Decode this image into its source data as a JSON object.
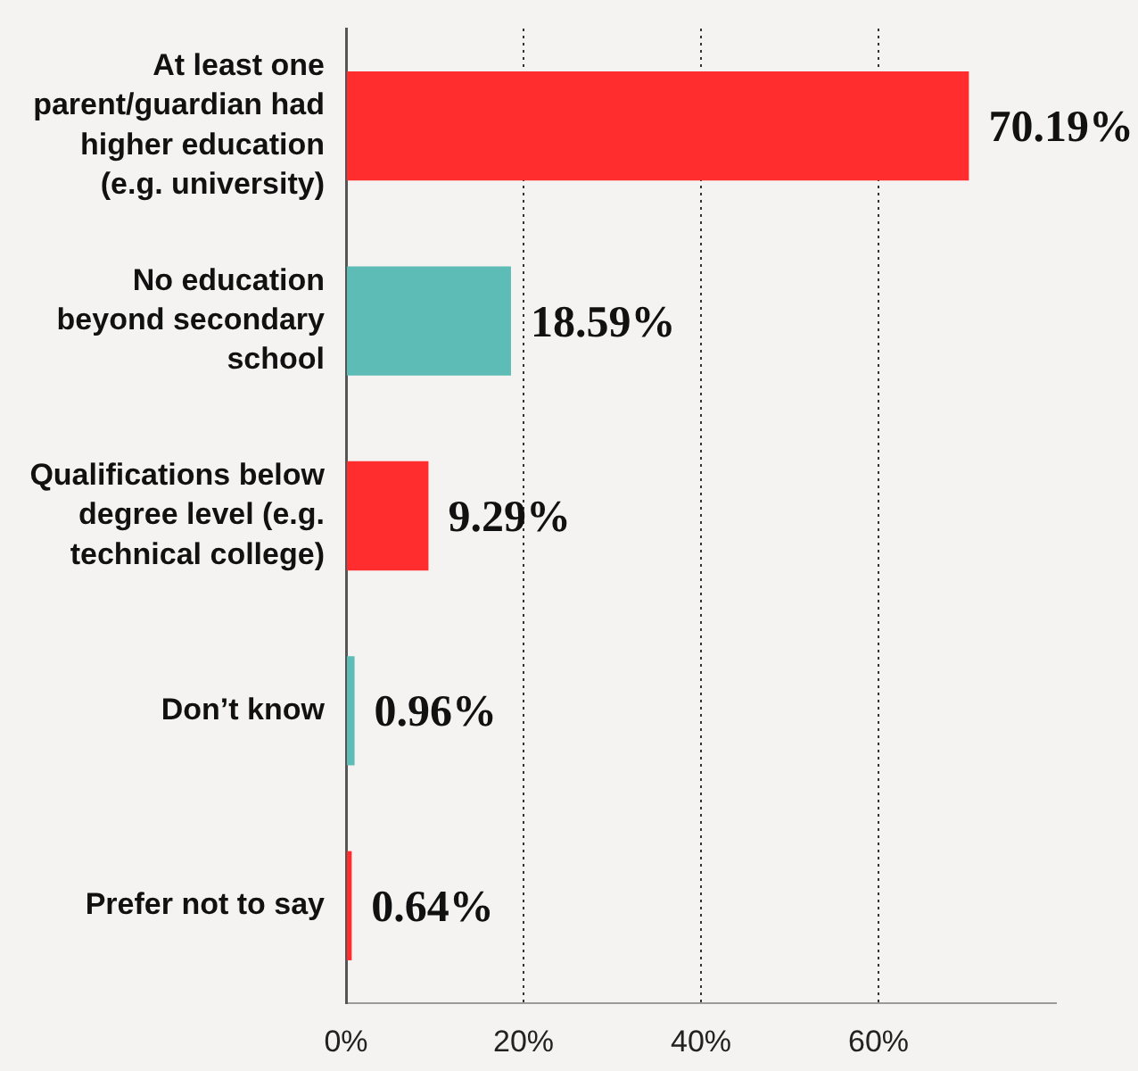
{
  "chart_data": {
    "type": "bar",
    "orientation": "horizontal",
    "categories": [
      "At least one parent/guardian had higher education (e.g. university)",
      "No education beyond secondary school",
      "Qualifications below degree level (e.g. technical college)",
      "Don’t know",
      "Prefer not to say"
    ],
    "values": [
      70.19,
      18.59,
      9.29,
      0.96,
      0.64
    ],
    "colors": [
      "#ff2d2d",
      "#5dbcb6",
      "#ff2d2d",
      "#5dbcb6",
      "#ff2d2d"
    ],
    "value_labels": [
      "70.19%",
      "18.59%",
      "9.29%",
      "0.96%",
      "0.64%"
    ],
    "xlim": [
      0,
      80
    ],
    "xticks": [
      {
        "value": 0,
        "label": "0%"
      },
      {
        "value": 20,
        "label": "20%"
      },
      {
        "value": 40,
        "label": "40%"
      },
      {
        "value": 60,
        "label": "60%"
      }
    ],
    "grid": "x"
  }
}
